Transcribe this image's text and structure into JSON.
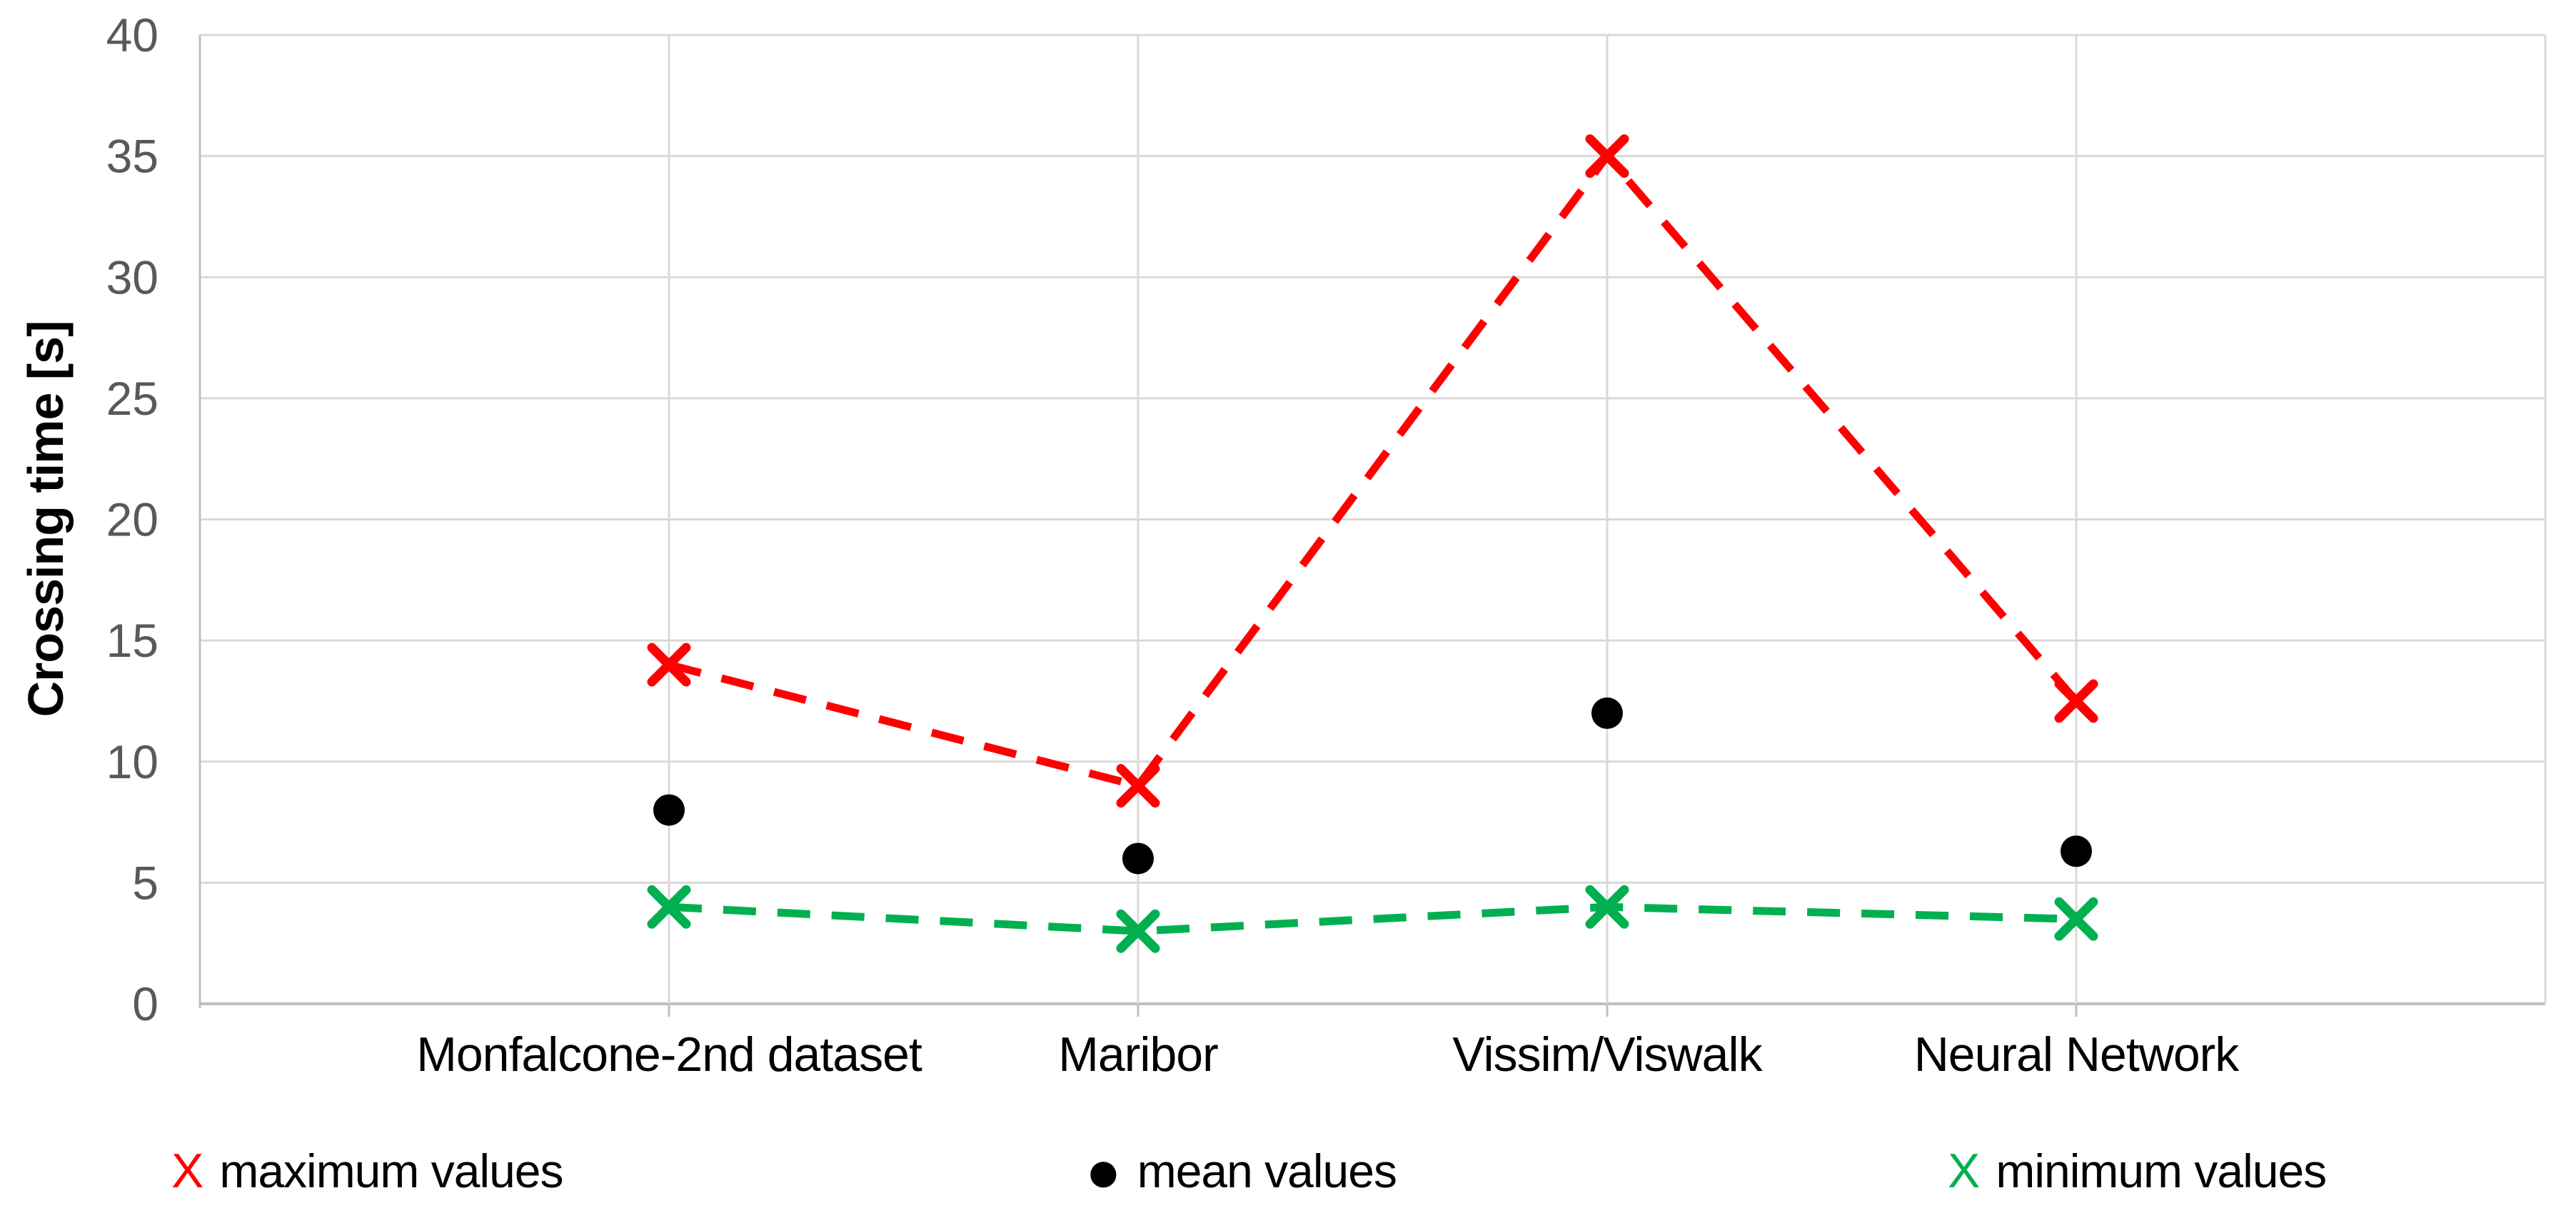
{
  "chart_data": {
    "type": "line",
    "title": "",
    "xlabel": "",
    "ylabel": "Crossing time [s]",
    "categories": [
      "Monfalcone-2nd dataset",
      "Maribor",
      "Vissim/Viswalk",
      "Neural Network"
    ],
    "series": [
      {
        "name": "maximum values",
        "legend_glyph": "X",
        "color": "#ff0000",
        "marker": "x",
        "line": "dashed",
        "values": [
          14,
          9,
          35,
          12.5
        ]
      },
      {
        "name": "mean values",
        "legend_glyph": "●",
        "color": "#000000",
        "marker": "circle",
        "line": "none",
        "values": [
          8,
          6,
          12,
          6.3
        ]
      },
      {
        "name": "minimum values",
        "legend_glyph": "X",
        "color": "#00b050",
        "marker": "x",
        "line": "dashed",
        "values": [
          4,
          3,
          4,
          3.5
        ]
      }
    ],
    "ylim": [
      0,
      40
    ],
    "yticks": [
      0,
      5,
      10,
      15,
      20,
      25,
      30,
      35,
      40
    ],
    "grid": true,
    "legend_position": "bottom"
  },
  "colors": {
    "background": "#ffffff",
    "gridline": "#d9d9d9",
    "axis_line": "#bfbfbf",
    "tick_label": "#595959",
    "category_label": "#000000"
  }
}
